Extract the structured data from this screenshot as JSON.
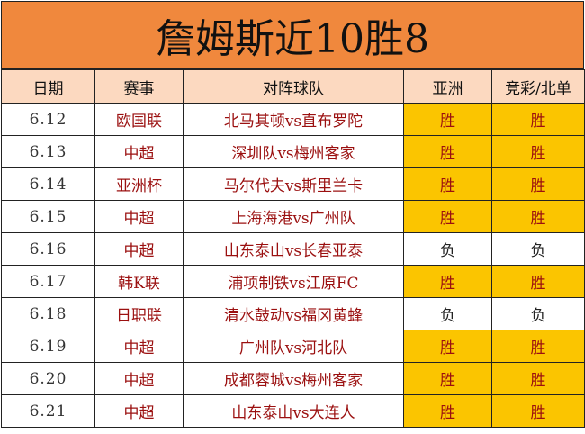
{
  "title": "詹姆斯近10胜8",
  "headers": {
    "date": "日期",
    "league": "赛事",
    "match": "对阵球队",
    "asia": "亚洲",
    "jingcai": "竞彩/北单"
  },
  "rows": [
    {
      "date": "6.12",
      "league": "欧国联",
      "match": "北马其顿vs直布罗陀",
      "asia": "胜",
      "jingcai": "胜"
    },
    {
      "date": "6.13",
      "league": "中超",
      "match": "深圳队vs梅州客家",
      "asia": "胜",
      "jingcai": "胜"
    },
    {
      "date": "6.14",
      "league": "亚洲杯",
      "match": "马尔代夫vs斯里兰卡",
      "asia": "胜",
      "jingcai": "胜"
    },
    {
      "date": "6.15",
      "league": "中超",
      "match": "上海海港vs广州队",
      "asia": "胜",
      "jingcai": "胜"
    },
    {
      "date": "6.16",
      "league": "中超",
      "match": "山东泰山vs长春亚泰",
      "asia": "负",
      "jingcai": "负"
    },
    {
      "date": "6.17",
      "league": "韩K联",
      "match": "浦项制铁vs江原FC",
      "asia": "胜",
      "jingcai": "胜"
    },
    {
      "date": "6.18",
      "league": "日职联",
      "match": "清水鼓动vs福冈黄蜂",
      "asia": "负",
      "jingcai": "负"
    },
    {
      "date": "6.19",
      "league": "中超",
      "match": "广州队vs河北队",
      "asia": "胜",
      "jingcai": "胜"
    },
    {
      "date": "6.20",
      "league": "中超",
      "match": "成都蓉城vs梅州客家",
      "asia": "胜",
      "jingcai": "胜"
    },
    {
      "date": "6.21",
      "league": "中超",
      "match": "山东泰山vs大连人",
      "asia": "胜",
      "jingcai": "胜"
    }
  ],
  "colors": {
    "banner": "#f0883d",
    "header": "#fcd9c0",
    "win": "#fbc500",
    "lose": "#ffffff",
    "text_red": "#9b1010"
  }
}
